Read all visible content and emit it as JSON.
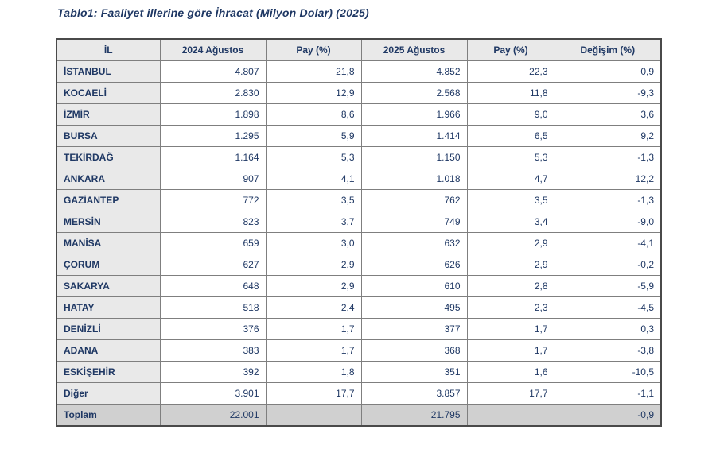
{
  "title": "Tablo1: Faaliyet illerine göre İhracat (Milyon Dolar) (2025)",
  "table": {
    "columns": [
      "İL",
      "2024 Ağustos",
      "Pay (%)",
      "2025 Ağustos",
      "Pay (%)",
      "Değişim (%)"
    ],
    "rows": [
      [
        "İSTANBUL",
        "4.807",
        "21,8",
        "4.852",
        "22,3",
        "0,9"
      ],
      [
        "KOCAELİ",
        "2.830",
        "12,9",
        "2.568",
        "11,8",
        "-9,3"
      ],
      [
        "İZMİR",
        "1.898",
        "8,6",
        "1.966",
        "9,0",
        "3,6"
      ],
      [
        "BURSA",
        "1.295",
        "5,9",
        "1.414",
        "6,5",
        "9,2"
      ],
      [
        "TEKİRDAĞ",
        "1.164",
        "5,3",
        "1.150",
        "5,3",
        "-1,3"
      ],
      [
        "ANKARA",
        "907",
        "4,1",
        "1.018",
        "4,7",
        "12,2"
      ],
      [
        "GAZİANTEP",
        "772",
        "3,5",
        "762",
        "3,5",
        "-1,3"
      ],
      [
        "MERSİN",
        "823",
        "3,7",
        "749",
        "3,4",
        "-9,0"
      ],
      [
        "MANİSA",
        "659",
        "3,0",
        "632",
        "2,9",
        "-4,1"
      ],
      [
        "ÇORUM",
        "627",
        "2,9",
        "626",
        "2,9",
        "-0,2"
      ],
      [
        "SAKARYA",
        "648",
        "2,9",
        "610",
        "2,8",
        "-5,9"
      ],
      [
        "HATAY",
        "518",
        "2,4",
        "495",
        "2,3",
        "-4,5"
      ],
      [
        "DENİZLİ",
        "376",
        "1,7",
        "377",
        "1,7",
        "0,3"
      ],
      [
        "ADANA",
        "383",
        "1,7",
        "368",
        "1,7",
        "-3,8"
      ],
      [
        "ESKİŞEHİR",
        "392",
        "1,8",
        "351",
        "1,6",
        "-10,5"
      ],
      [
        "Diğer",
        "3.901",
        "17,7",
        "3.857",
        "17,7",
        "-1,1"
      ]
    ],
    "total_row": [
      "Toplam",
      "22.001",
      "",
      "21.795",
      "",
      "-0,9"
    ]
  },
  "colors": {
    "text_navy": "#1f3864",
    "header_bg": "#e9e9e9",
    "total_row_bg": "#d0d0d0",
    "inner_border": "#7f7f7f",
    "outer_border": "#4a4a4a"
  }
}
